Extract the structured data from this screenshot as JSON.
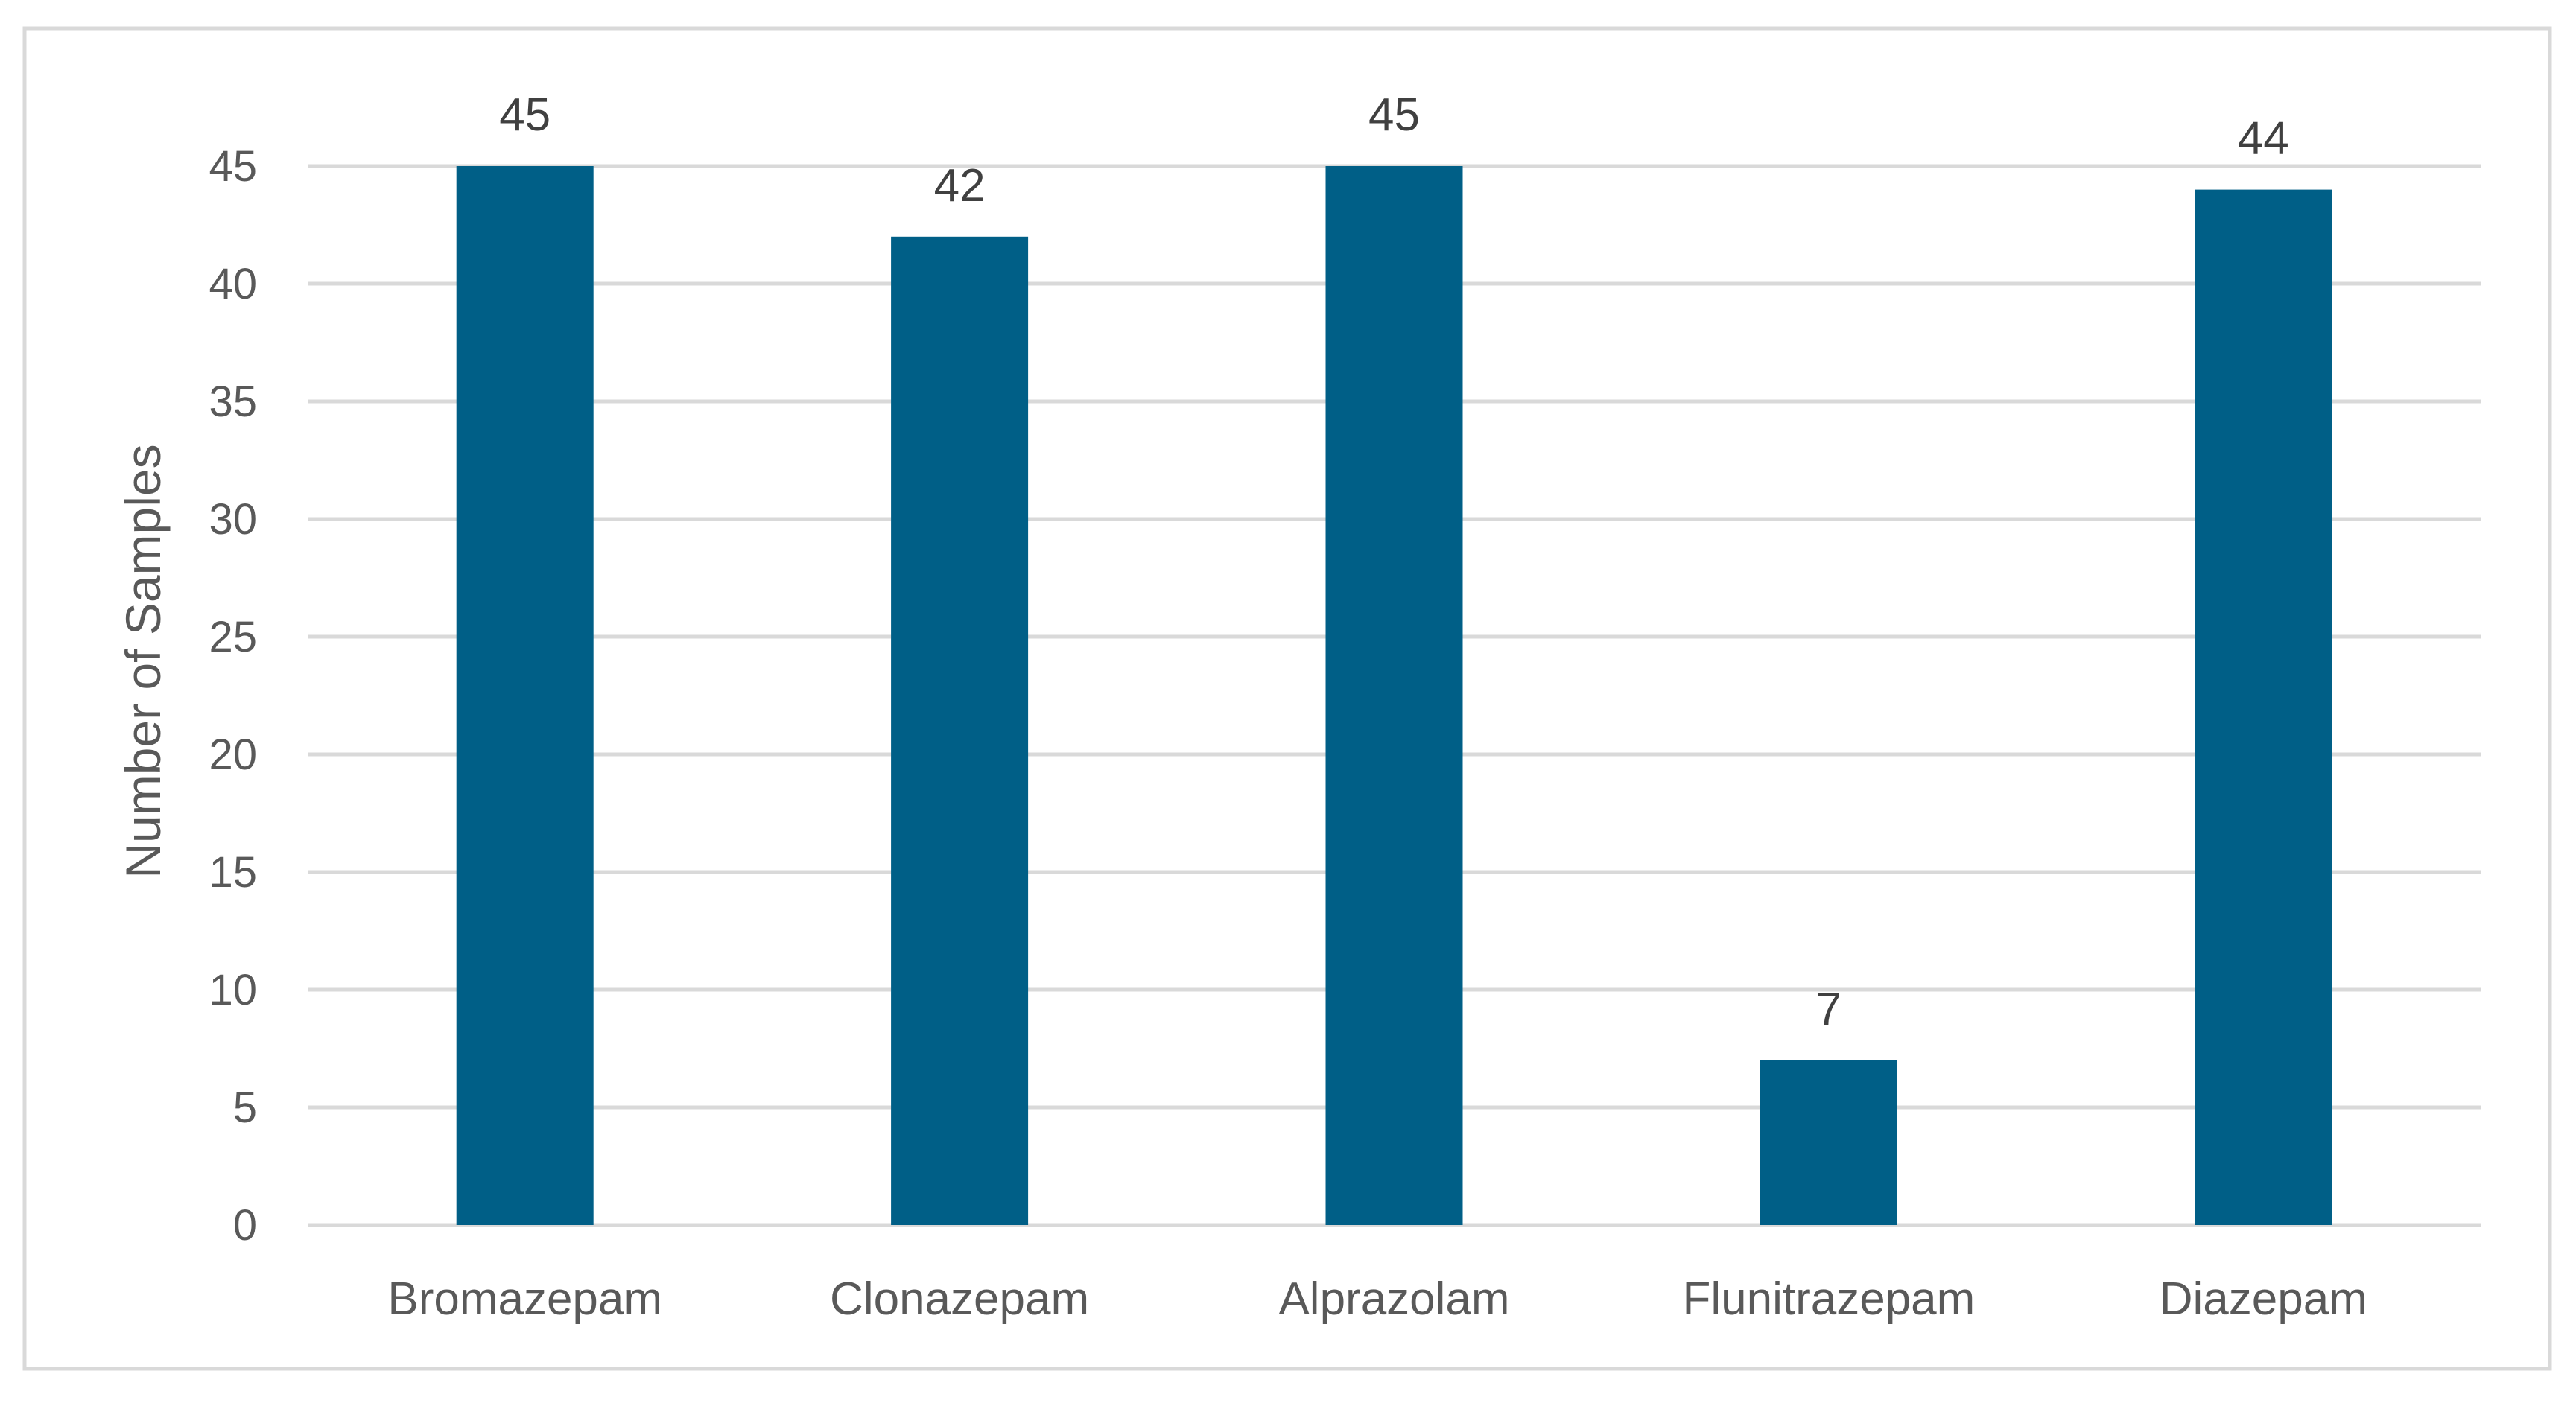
{
  "chart_data": {
    "type": "bar",
    "title": "",
    "xlabel": "",
    "ylabel": "Number of Samples",
    "categories": [
      "Bromazepam",
      "Clonazepam",
      "Alprazolam",
      "Flunitrazepam",
      "Diazepam"
    ],
    "values": [
      45,
      42,
      45,
      7,
      44
    ],
    "data_labels": [
      "45",
      "42",
      "45",
      "7",
      "44"
    ],
    "ylim": [
      0,
      45
    ],
    "yticks": [
      0,
      5,
      10,
      15,
      20,
      25,
      30,
      35,
      40,
      45
    ],
    "grid": true,
    "legend": "none",
    "colors": {
      "bar": "#005f87",
      "grid": "#d9d9d9",
      "text": "#595959",
      "frame": "#d9d9d9"
    }
  }
}
